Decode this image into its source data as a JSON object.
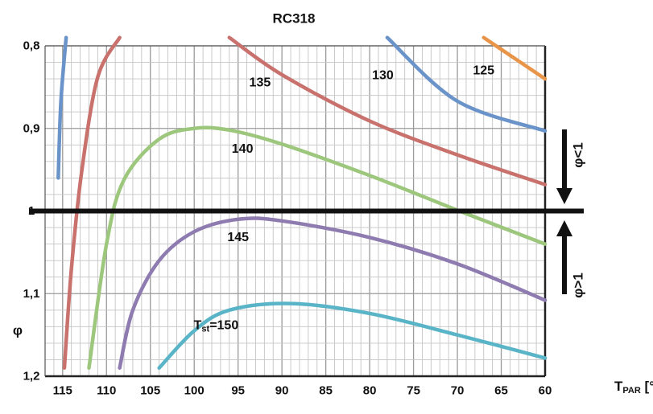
{
  "chart_data": {
    "type": "line",
    "mirrored_rendering": true,
    "x_axis": {
      "label": "T [°C]",
      "label_subscript": "PAR",
      "ticks": [
        60,
        65,
        70,
        75,
        80,
        85,
        90,
        95,
        100,
        105,
        110,
        115
      ],
      "range": [
        60,
        117
      ]
    },
    "y_axis": {
      "label": "φ",
      "ticks": [
        0.8,
        0.9,
        1,
        1.1,
        1.2
      ],
      "tick_labels": [
        "0,8",
        "0,9",
        "1",
        "1,1",
        "1,2"
      ],
      "range": [
        0.8,
        1.2
      ]
    },
    "grid": true,
    "reference_line": {
      "y": 1
    },
    "bottom_label": "RC318",
    "annotations": [
      {
        "text": "φ<1",
        "arrow": "up"
      },
      {
        "text": "φ>1",
        "arrow": "down"
      }
    ],
    "series": [
      {
        "label": "125",
        "color": "#e8954a",
        "points": [
          [
            60,
            0.84
          ],
          [
            67,
            0.79
          ]
        ]
      },
      {
        "label": "130",
        "color": "#6a93c9",
        "points": [
          [
            60,
            0.903
          ],
          [
            70,
            0.867
          ],
          [
            78,
            0.79
          ]
        ]
      },
      {
        "label": "135",
        "color": "#c8716d",
        "points": [
          [
            60,
            0.968
          ],
          [
            70,
            0.932
          ],
          [
            80,
            0.891
          ],
          [
            90,
            0.835
          ],
          [
            96,
            0.79
          ]
        ]
      },
      {
        "label": "140",
        "color": "#9cc77c",
        "points": [
          [
            60,
            1.04
          ],
          [
            70,
            0.999
          ],
          [
            80,
            0.957
          ],
          [
            90,
            0.919
          ],
          [
            96,
            0.902
          ],
          [
            100,
            0.9
          ],
          [
            104,
            0.913
          ],
          [
            108,
            0.962
          ],
          [
            110,
            1.04
          ],
          [
            112,
            1.19
          ]
        ]
      },
      {
        "label": "145",
        "color": "#8e7bb0",
        "points": [
          [
            60,
            1.108
          ],
          [
            70,
            1.064
          ],
          [
            80,
            1.032
          ],
          [
            90,
            1.012
          ],
          [
            95,
            1.01
          ],
          [
            100,
            1.025
          ],
          [
            104,
            1.06
          ],
          [
            107,
            1.12
          ],
          [
            108.5,
            1.19
          ]
        ]
      },
      {
        "label": "T",
        "label_subscript": "st",
        "label_value": "=150",
        "color": "#5ab4c8",
        "points": [
          [
            60,
            1.178
          ],
          [
            70,
            1.15
          ],
          [
            80,
            1.124
          ],
          [
            89,
            1.112
          ],
          [
            96,
            1.12
          ],
          [
            100,
            1.145
          ],
          [
            104,
            1.19
          ]
        ]
      },
      {
        "label": "",
        "color": "#c8716d",
        "points": [
          [
            108.5,
            0.79
          ],
          [
            111,
            0.838
          ],
          [
            112.8,
            0.95
          ],
          [
            114,
            1.07
          ],
          [
            114.8,
            1.19
          ]
        ]
      },
      {
        "label": "",
        "color": "#6a93c9",
        "points": [
          [
            114.6,
            0.79
          ],
          [
            115.2,
            0.868
          ],
          [
            115.5,
            0.96
          ]
        ]
      }
    ]
  }
}
